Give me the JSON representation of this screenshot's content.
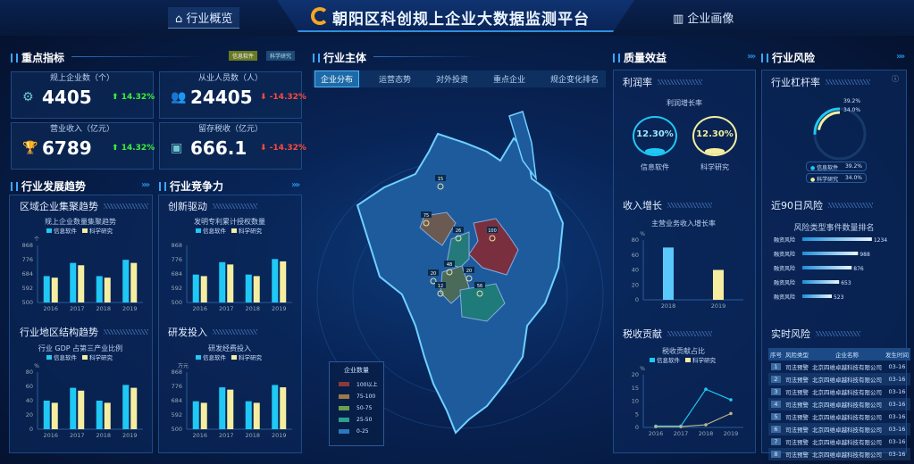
{
  "header": {
    "title": "朝阳区科创规上企业大数据监测平台",
    "nav_left": "行业概览",
    "nav_right": "企业画像"
  },
  "key_metrics": {
    "title": "重点指标",
    "toggles": [
      "信息软件",
      "科学研究"
    ],
    "cards": [
      {
        "label": "规上企业数（个）",
        "value": "4405",
        "change": "14.32%",
        "trend": "up",
        "icon": "gear-icon"
      },
      {
        "label": "从业人员数（人）",
        "value": "24405",
        "change": "-14.32%",
        "trend": "down",
        "icon": "people-icon"
      },
      {
        "label": "营业收入（亿元）",
        "value": "6789",
        "change": "14.32%",
        "trend": "up",
        "icon": "trophy-icon"
      },
      {
        "label": "留存税收（亿元）",
        "value": "666.1",
        "change": "-14.32%",
        "trend": "down",
        "icon": "coins-icon"
      }
    ]
  },
  "colors": {
    "info": "#1fc8f5",
    "sci": "#f5eea0",
    "up": "#3cf03c",
    "down": "#ff4a3a",
    "accent": "#2aa8ff"
  },
  "legend": {
    "info": "信息软件",
    "sci": "科学研究"
  },
  "trend": {
    "title": "行业发展趋势",
    "sub1": "区域企业集聚趋势",
    "sub2": "行业地区结构趋势"
  },
  "compete": {
    "title": "行业竞争力",
    "sub1": "创新驱动",
    "sub2": "研发投入"
  },
  "center": {
    "title": "行业主体",
    "tabs": [
      "企业分布",
      "运营态势",
      "对外投资",
      "重点企业",
      "规企变化排名"
    ],
    "map_labels": [
      "15",
      "75",
      "26",
      "100",
      "48",
      "20",
      "20",
      "12",
      "56"
    ],
    "map_legend": {
      "title": "企业数量",
      "items": [
        {
          "label": "100以上",
          "color": "#8a3a3a"
        },
        {
          "label": "75-100",
          "color": "#9a7a4a"
        },
        {
          "label": "50-75",
          "color": "#6aa050"
        },
        {
          "label": "25-50",
          "color": "#2aa090"
        },
        {
          "label": "0-25",
          "color": "#2a7ac0"
        }
      ]
    }
  },
  "quality": {
    "title": "质量效益",
    "profit": {
      "title": "利润率",
      "chart_title": "利润增长率",
      "info_value": "12.30%",
      "sci_value": "12.30%"
    },
    "income": {
      "title": "收入增长"
    },
    "tax": {
      "title": "税收贡献"
    }
  },
  "risk": {
    "title": "行业风险",
    "leverage": {
      "title": "行业杠杆率",
      "info": "39.2%",
      "sci": "34.0%"
    },
    "recent": {
      "title": "近90日风险",
      "chart_title": "风险类型事件数量排名"
    },
    "realtime": {
      "title": "实时风险",
      "headers": [
        "序号",
        "风险类型",
        "企业名称",
        "发生时间"
      ],
      "rows": [
        [
          "1",
          "司法预警",
          "北京四维卓越科技有限公司",
          "03-16"
        ],
        [
          "2",
          "司法预警",
          "北京四维卓越科技有限公司",
          "03-16"
        ],
        [
          "3",
          "司法预警",
          "北京四维卓越科技有限公司",
          "03-16"
        ],
        [
          "4",
          "司法预警",
          "北京四维卓越科技有限公司",
          "03-16"
        ],
        [
          "5",
          "司法预警",
          "北京四维卓越科技有限公司",
          "03-16"
        ],
        [
          "6",
          "司法预警",
          "北京四维卓越科技有限公司",
          "03-16"
        ],
        [
          "7",
          "司法预警",
          "北京四维卓越科技有限公司",
          "03-16"
        ],
        [
          "8",
          "司法预警",
          "北京四维卓越科技有限公司",
          "03-16"
        ]
      ]
    }
  },
  "chart_data": [
    {
      "id": "c1",
      "type": "bar",
      "title": "规上企业数量集聚趋势",
      "unit": "个",
      "categories": [
        "2016",
        "2017",
        "2018",
        "2019"
      ],
      "ylim": [
        500,
        868
      ],
      "yticks": [
        500,
        592,
        684,
        776,
        868
      ],
      "series": [
        {
          "name": "信息软件",
          "values": [
            670,
            755,
            670,
            775
          ]
        },
        {
          "name": "科学研究",
          "values": [
            660,
            740,
            660,
            755
          ]
        }
      ]
    },
    {
      "id": "c2",
      "type": "bar",
      "title": "行业 GDP 占第三产业比例",
      "unit": "%",
      "categories": [
        "2016",
        "2017",
        "2018",
        "2019"
      ],
      "ylim": [
        0,
        80
      ],
      "yticks": [
        0,
        20,
        40,
        60,
        80
      ],
      "series": [
        {
          "name": "信息软件",
          "values": [
            40,
            58,
            40,
            62
          ]
        },
        {
          "name": "科学研究",
          "values": [
            37,
            54,
            37,
            58
          ]
        }
      ]
    },
    {
      "id": "c3",
      "type": "bar",
      "title": "发明专利累计授权数量",
      "unit": "",
      "categories": [
        "2016",
        "2017",
        "2018",
        "2019"
      ],
      "ylim": [
        500,
        868
      ],
      "yticks": [
        500,
        592,
        684,
        776,
        868
      ],
      "series": [
        {
          "name": "信息软件",
          "values": [
            680,
            760,
            680,
            780
          ]
        },
        {
          "name": "科学研究",
          "values": [
            670,
            745,
            670,
            765
          ]
        }
      ]
    },
    {
      "id": "c4",
      "type": "bar",
      "title": "研发经费投入",
      "unit": "万元",
      "categories": [
        "2016",
        "2017",
        "2018",
        "2019"
      ],
      "ylim": [
        500,
        868
      ],
      "yticks": [
        500,
        592,
        684,
        776,
        868
      ],
      "series": [
        {
          "name": "信息软件",
          "values": [
            680,
            770,
            680,
            785
          ]
        },
        {
          "name": "科学研究",
          "values": [
            670,
            755,
            670,
            770
          ]
        }
      ]
    },
    {
      "id": "c5",
      "type": "bar",
      "title": "主营业务收入增长率",
      "unit": "%",
      "categories": [
        "2018",
        "2019"
      ],
      "ylim": [
        0,
        80
      ],
      "yticks": [
        0,
        20,
        40,
        60,
        80
      ],
      "series": [
        {
          "values": [
            70,
            40
          ]
        }
      ]
    },
    {
      "id": "c6",
      "type": "line",
      "title": "税收贡献占比",
      "unit": "%",
      "categories": [
        "2016",
        "2017",
        "2018",
        "2019"
      ],
      "ylim": [
        0,
        20
      ],
      "yticks": [
        0,
        5,
        10,
        15,
        20
      ],
      "series": [
        {
          "name": "信息软件",
          "values": [
            0.5,
            0.5,
            14.5,
            10.5
          ]
        },
        {
          "name": "科学研究",
          "values": [
            0.3,
            0.3,
            1,
            5.3
          ]
        }
      ]
    },
    {
      "id": "c7",
      "type": "bar",
      "orientation": "horizontal",
      "title": "风险类型事件数量排名",
      "categories": [
        "融资风险",
        "融资风险",
        "融资风险",
        "融资风险",
        "融资风险"
      ],
      "values": [
        1234,
        988,
        876,
        653,
        523
      ]
    }
  ]
}
